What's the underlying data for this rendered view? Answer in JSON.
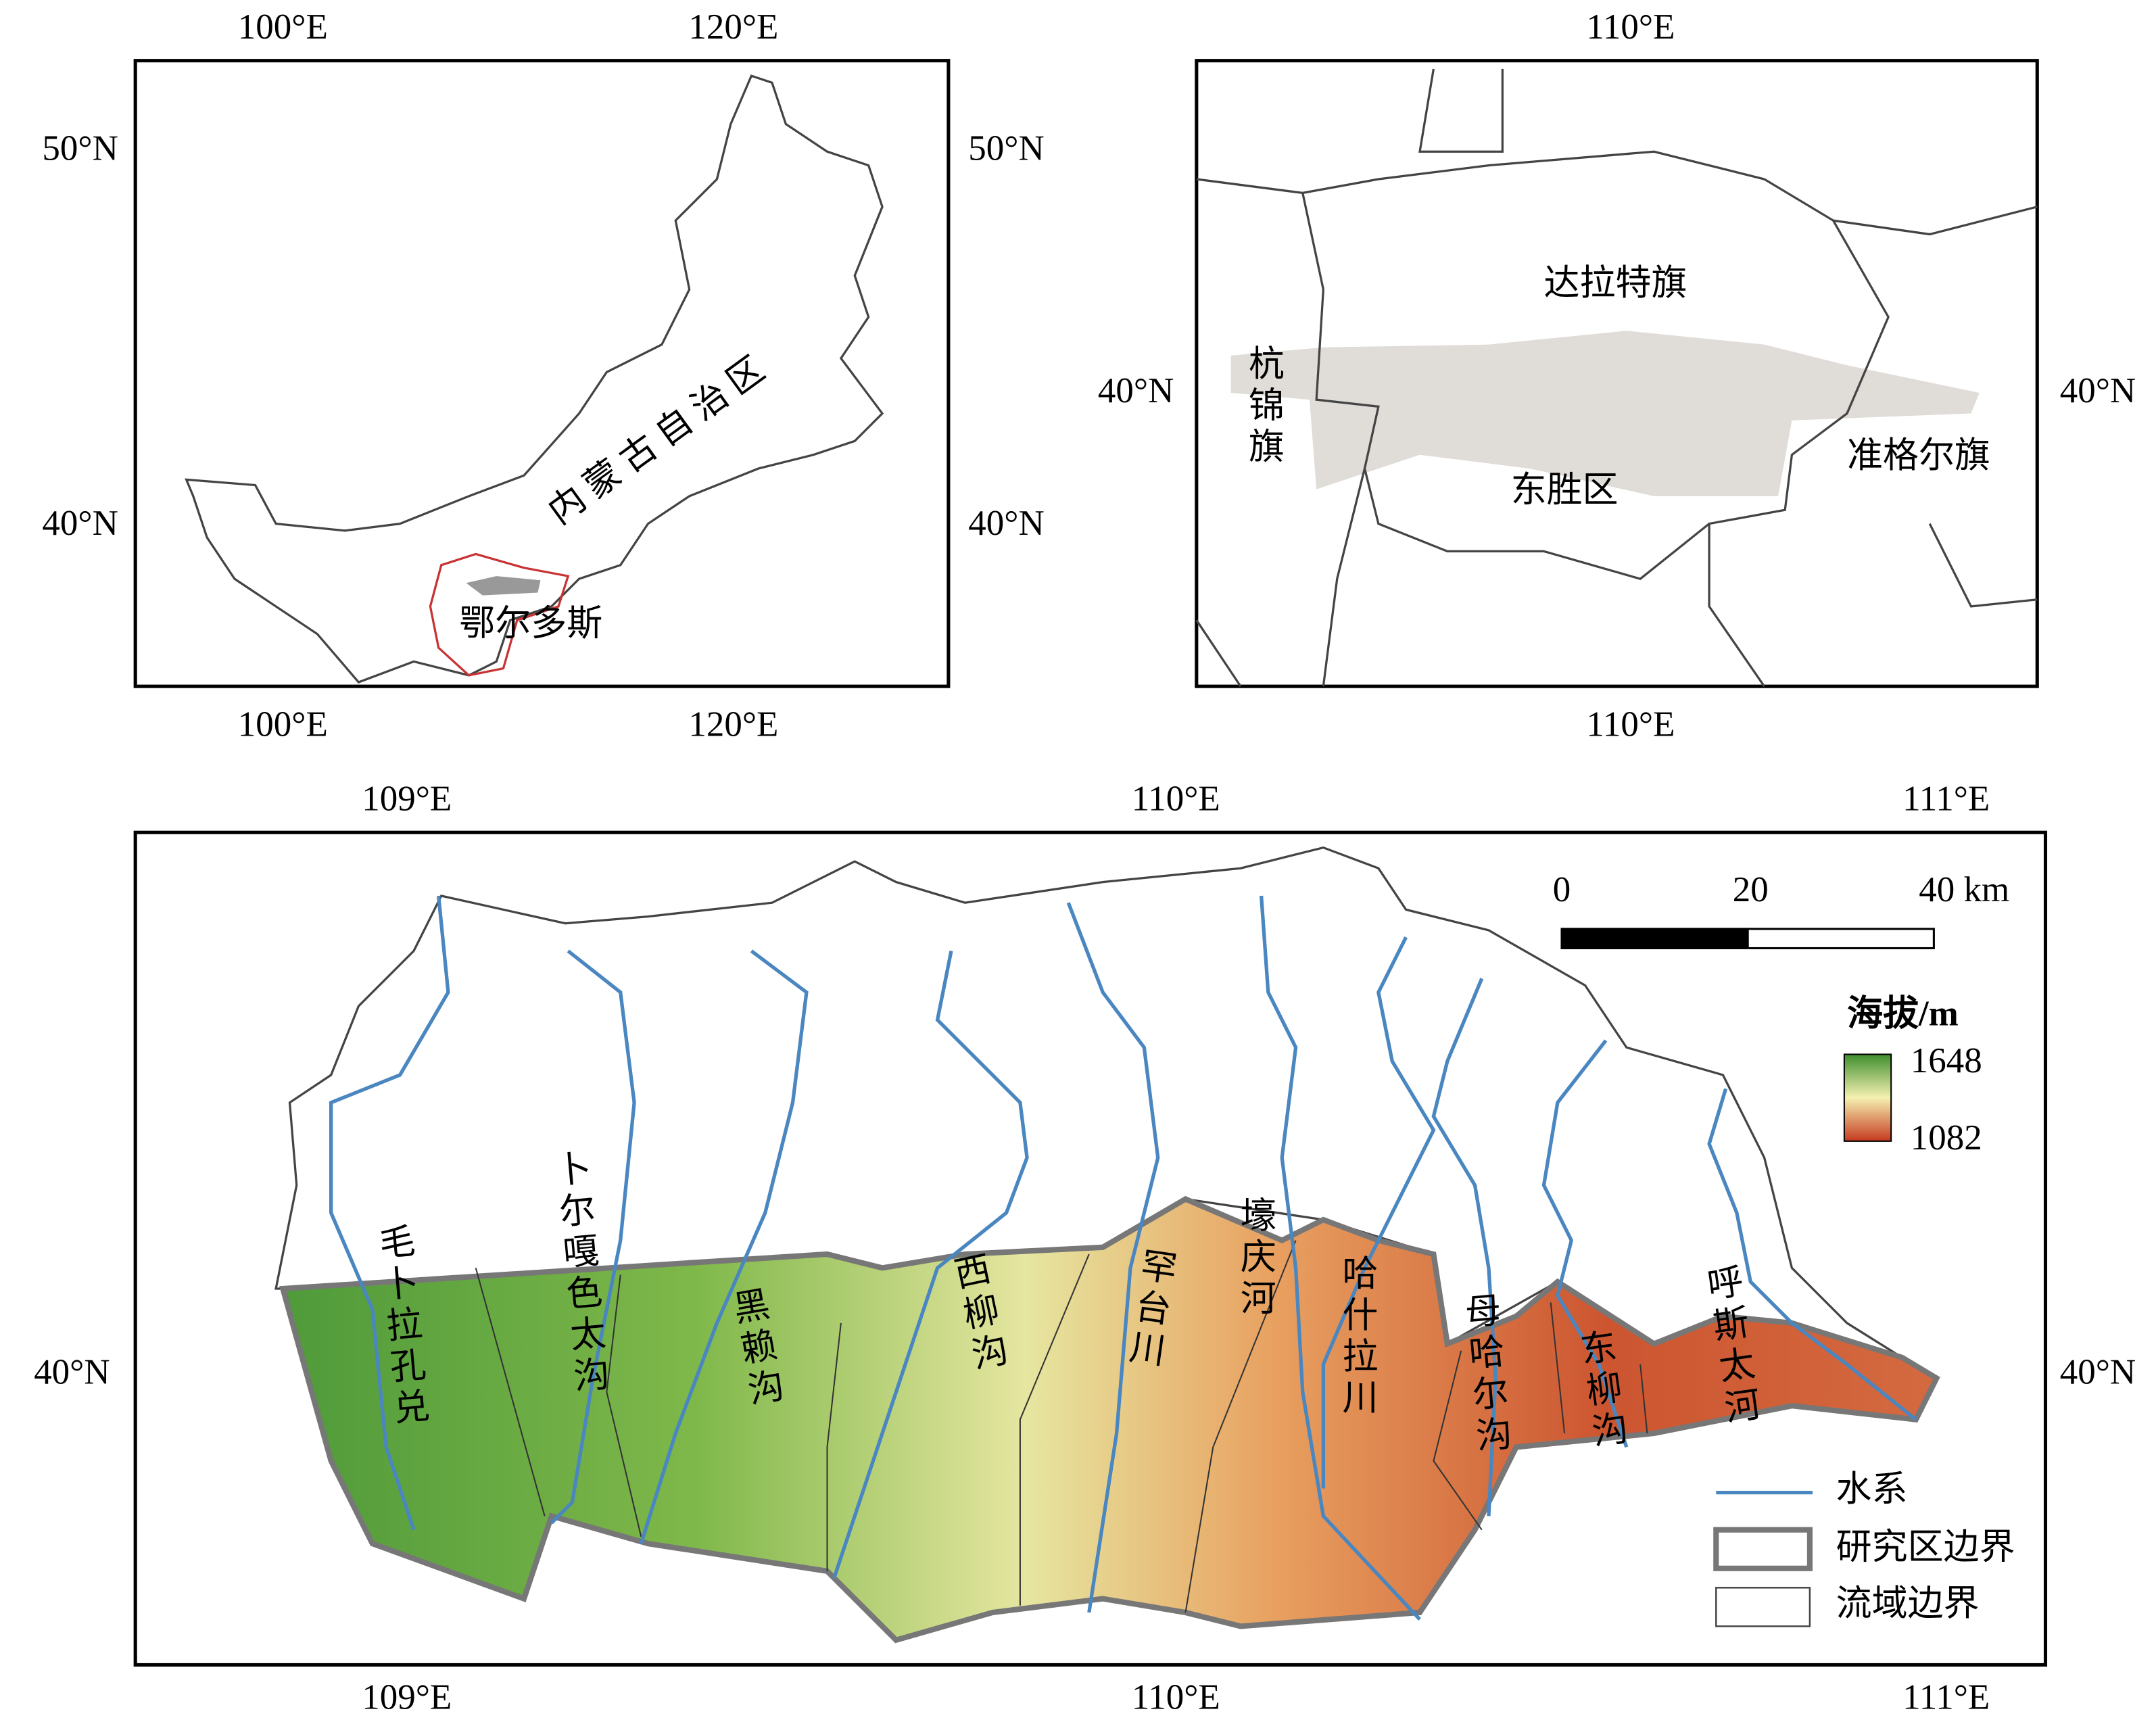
{
  "inset_map": {
    "top_ticks": [
      "100°E",
      "120°E"
    ],
    "bottom_ticks": [
      "100°E",
      "120°E"
    ],
    "left_ticks": [
      "50°N",
      "40°N"
    ],
    "right_ticks": [
      "50°N",
      "40°N"
    ],
    "labels": [
      "内蒙古自治区",
      "鄂尔多斯"
    ]
  },
  "locator_map": {
    "top_ticks": [
      "110°E"
    ],
    "bottom_ticks": [
      "110°E"
    ],
    "left_ticks": [
      "40°N"
    ],
    "right_ticks": [
      "40°N"
    ],
    "labels": [
      "达拉特旗",
      "杭锦旗",
      "东胜区",
      "准格尔旗"
    ]
  },
  "main_map": {
    "top_ticks": [
      "109°E",
      "110°E",
      "111°E"
    ],
    "bottom_ticks": [
      "109°E",
      "110°E",
      "111°E"
    ],
    "left_ticks": [
      "40°N"
    ],
    "right_ticks": [
      "40°N"
    ],
    "rivers": [
      "毛卜拉孔兑",
      "卜尔嘎色太沟",
      "黑赖沟",
      "西柳沟",
      "罕台川",
      "壕庆河",
      "哈什拉川",
      "母哈尔沟",
      "东柳沟",
      "呼斯太河"
    ],
    "scale_bar": {
      "labels": [
        "0",
        "20",
        "40 km"
      ]
    },
    "legend": {
      "title": "海拔/m",
      "max": 1648,
      "min": 1082,
      "items": [
        "水系",
        "研究区边界",
        "流域边界"
      ]
    }
  }
}
